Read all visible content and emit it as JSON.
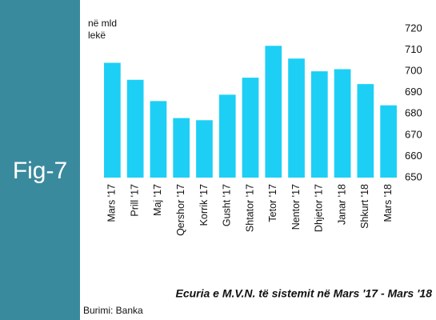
{
  "chart_data": {
    "type": "bar",
    "figure_label": "Fig-7",
    "y_label": [
      "në mld",
      "lekë"
    ],
    "title": "Ecuria e M.V.N. të sistemit në Mars '17  - Mars '18",
    "source": "Burimi: Banka",
    "categories": [
      "Mars '17",
      "Prill '17",
      "Maj '17",
      "Qershor '17",
      "Korrik '17",
      "Gusht '17",
      "Shtator '17",
      "Tetor '17",
      "Nentor '17",
      "Dhjetor '17",
      "Janar '18",
      "Shkurt '18",
      "Mars '18"
    ],
    "values": [
      704,
      696,
      686,
      678,
      677,
      689,
      697,
      712,
      706,
      700,
      701,
      694,
      684
    ],
    "color": "#1dcff5",
    "ylim": [
      650,
      720
    ],
    "yticks": [
      650,
      660,
      670,
      680,
      690,
      700,
      710,
      720
    ],
    "axis_side": "right",
    "grid": false
  }
}
